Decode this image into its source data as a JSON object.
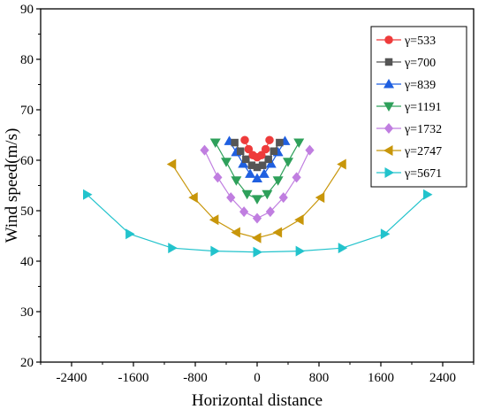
{
  "chart_data": {
    "type": "scatter",
    "title": "",
    "xlabel": "Horizontal distance",
    "ylabel": "Wind speed(m/s)",
    "xlim": [
      -2800,
      2800
    ],
    "ylim": [
      20,
      90
    ],
    "xticks": [
      -2400,
      -1600,
      -800,
      0,
      800,
      1600,
      2400
    ],
    "xtick_labels": [
      "-2400",
      "-1600",
      "-800",
      "0",
      "800",
      "1600",
      "2400"
    ],
    "yticks": [
      20,
      30,
      40,
      50,
      60,
      70,
      80,
      90
    ],
    "ytick_labels": [
      "20",
      "30",
      "40",
      "50",
      "60",
      "70",
      "80",
      "90"
    ],
    "grid": false,
    "legend_position": "top-right",
    "series": [
      {
        "name": "γ=533",
        "color": "#ee3b3b",
        "marker": "circle",
        "x": [
          -160,
          -110,
          -55,
          0,
          55,
          110,
          160
        ],
        "y": [
          64.0,
          62.2,
          61.0,
          60.6,
          61.0,
          62.2,
          64.0
        ]
      },
      {
        "name": "γ=700",
        "color": "#555555",
        "marker": "square",
        "x": [
          -290,
          -215,
          -145,
          -70,
          0,
          70,
          145,
          215,
          290
        ],
        "y": [
          63.5,
          61.8,
          60.2,
          59.0,
          58.6,
          59.0,
          60.2,
          61.8,
          63.5
        ]
      },
      {
        "name": "γ=839",
        "color": "#1f5fe0",
        "marker": "triangle-up",
        "x": [
          -360,
          -270,
          -180,
          -90,
          0,
          90,
          180,
          270,
          360
        ],
        "y": [
          63.8,
          61.6,
          59.3,
          57.3,
          56.4,
          57.3,
          59.3,
          61.6,
          63.8
        ]
      },
      {
        "name": "γ=1191",
        "color": "#2ea05a",
        "marker": "triangle-down",
        "x": [
          -540,
          -400,
          -270,
          -130,
          0,
          130,
          270,
          400,
          540
        ],
        "y": [
          63.5,
          59.7,
          56.0,
          53.3,
          52.3,
          53.3,
          56.0,
          59.7,
          63.5
        ]
      },
      {
        "name": "γ=1732",
        "color": "#c07ee0",
        "marker": "diamond",
        "x": [
          -680,
          -510,
          -340,
          -170,
          0,
          170,
          340,
          510,
          680
        ],
        "y": [
          62.0,
          56.6,
          52.6,
          49.8,
          48.5,
          49.8,
          52.6,
          56.6,
          62.0
        ]
      },
      {
        "name": "γ=2747",
        "color": "#c8960a",
        "marker": "triangle-left",
        "x": [
          -1100,
          -820,
          -550,
          -270,
          0,
          270,
          550,
          820,
          1100
        ],
        "y": [
          59.2,
          52.6,
          48.2,
          45.7,
          44.6,
          45.7,
          48.2,
          52.6,
          59.2
        ]
      },
      {
        "name": "γ=5671",
        "color": "#22c3cc",
        "marker": "triangle-right",
        "x": [
          -2200,
          -1650,
          -1100,
          -550,
          0,
          550,
          1100,
          1650,
          2200
        ],
        "y": [
          53.2,
          45.4,
          42.6,
          42.0,
          41.8,
          42.0,
          42.6,
          45.4,
          53.2
        ]
      }
    ]
  }
}
